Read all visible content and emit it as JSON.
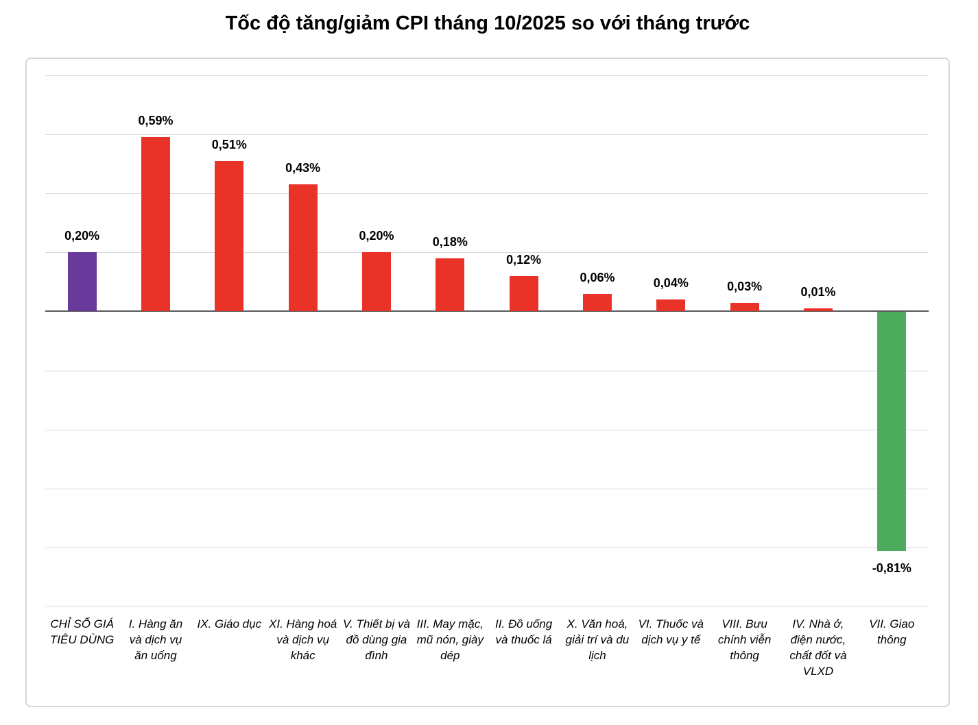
{
  "title": "Tốc độ tăng/giảm CPI tháng 10/2025 so với tháng trước",
  "chart_data": {
    "type": "bar",
    "title": "Tốc độ tăng/giảm CPI tháng 10/2025 so với tháng trước",
    "categories": [
      "CHỈ SỐ GIÁ TIÊU DÙNG",
      "I. Hàng ăn và dịch vụ ăn uống",
      "IX. Giáo dục",
      "XI. Hàng hoá và dịch vụ khác",
      "V. Thiết bị và đồ dùng gia đình",
      "III. May mặc, mũ nón, giày dép",
      "II. Đồ uống và thuốc lá",
      "X. Văn hoá, giải trí và du lịch",
      "VI. Thuốc và dịch vụ y tế",
      "VIII. Bưu chính viễn thông",
      "IV. Nhà ở, điện nước, chất đốt và VLXD",
      "VII. Giao thông"
    ],
    "values": [
      0.2,
      0.59,
      0.51,
      0.43,
      0.2,
      0.18,
      0.12,
      0.06,
      0.04,
      0.03,
      0.01,
      -0.81
    ],
    "value_labels": [
      "0,20%",
      "0,59%",
      "0,51%",
      "0,43%",
      "0,20%",
      "0,18%",
      "0,12%",
      "0,06%",
      "0,04%",
      "0,03%",
      "0,01%",
      "-0,81%"
    ],
    "bar_colors": [
      "#693A9B",
      "#E93329",
      "#E93329",
      "#E93329",
      "#E93329",
      "#E93329",
      "#E93329",
      "#E93329",
      "#E93329",
      "#E93329",
      "#E93329",
      "#4CAC5E"
    ],
    "xlabel": "",
    "ylabel": "",
    "ylim": [
      -1.0,
      0.8
    ],
    "grid_step": 0.2,
    "grid": true,
    "legend": false,
    "unit": "%",
    "decimal_separator": ",",
    "gridline_color": "#D9D9D9",
    "axis_color": "#595959",
    "frame_border_color": "#D6D6D6"
  }
}
